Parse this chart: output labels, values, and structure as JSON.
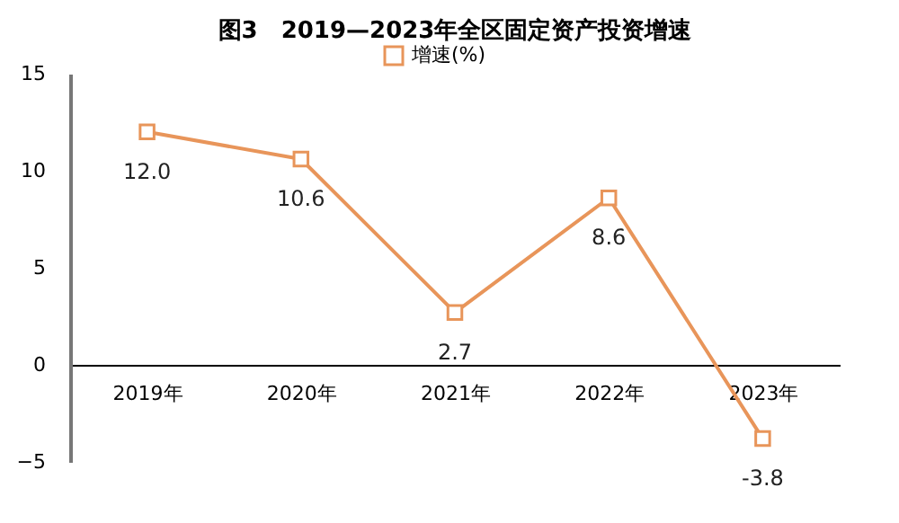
{
  "chart_data": {
    "type": "line",
    "title": "图3　2019—2023年全区固定资产投资增速",
    "categories": [
      "2019年",
      "2020年",
      "2021年",
      "2022年",
      "2023年"
    ],
    "series": [
      {
        "name": "增速(%)",
        "color": "#e8955a",
        "values": [
          12.0,
          10.6,
          2.7,
          8.6,
          -3.8
        ],
        "value_labels": [
          "12.0",
          "10.6",
          "2.7",
          "8.6",
          "-3.8"
        ]
      }
    ],
    "ylim": [
      -5,
      15
    ],
    "yticks": [
      -5,
      0,
      5,
      10,
      15
    ],
    "grid": false,
    "legend": "top",
    "marker": "square",
    "line_style": "solid"
  }
}
